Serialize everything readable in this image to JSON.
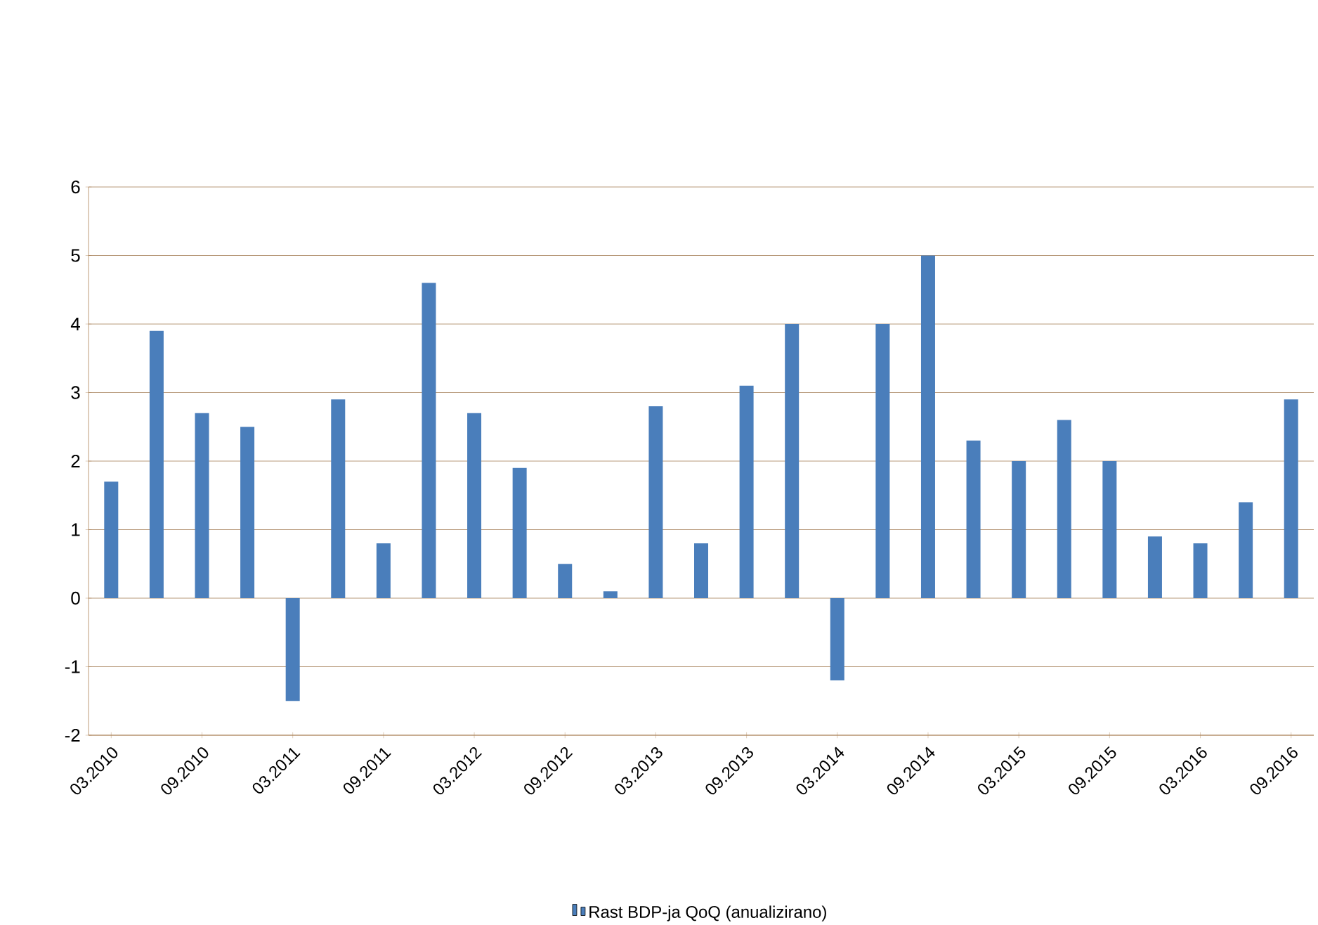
{
  "chart_data": {
    "type": "bar",
    "categories": [
      "03.2010",
      null,
      "09.2010",
      null,
      "03.2011",
      null,
      "09.2011",
      null,
      "03.2012",
      null,
      "09.2012",
      null,
      "03.2013",
      null,
      "09.2013",
      null,
      "03.2014",
      null,
      "09.2014",
      null,
      "03.2015",
      null,
      "09.2015",
      null,
      "03.2016",
      null,
      "09.2016"
    ],
    "series": [
      {
        "name": "Rast BDP-ja QoQ (anualizirano)",
        "color": "#4a7ebb",
        "values": [
          1.7,
          3.9,
          2.7,
          2.5,
          -1.5,
          2.9,
          0.8,
          4.6,
          2.7,
          1.9,
          0.5,
          0.1,
          2.8,
          0.8,
          3.1,
          4.0,
          -1.2,
          4.0,
          5.0,
          2.3,
          2.0,
          2.6,
          2.0,
          0.9,
          0.8,
          1.4,
          2.9
        ]
      }
    ],
    "ylim": [
      -2,
      6
    ],
    "yticks": [
      -2,
      -1,
      0,
      1,
      2,
      3,
      4,
      5,
      6
    ],
    "grid": "y",
    "legend": "bottom"
  }
}
